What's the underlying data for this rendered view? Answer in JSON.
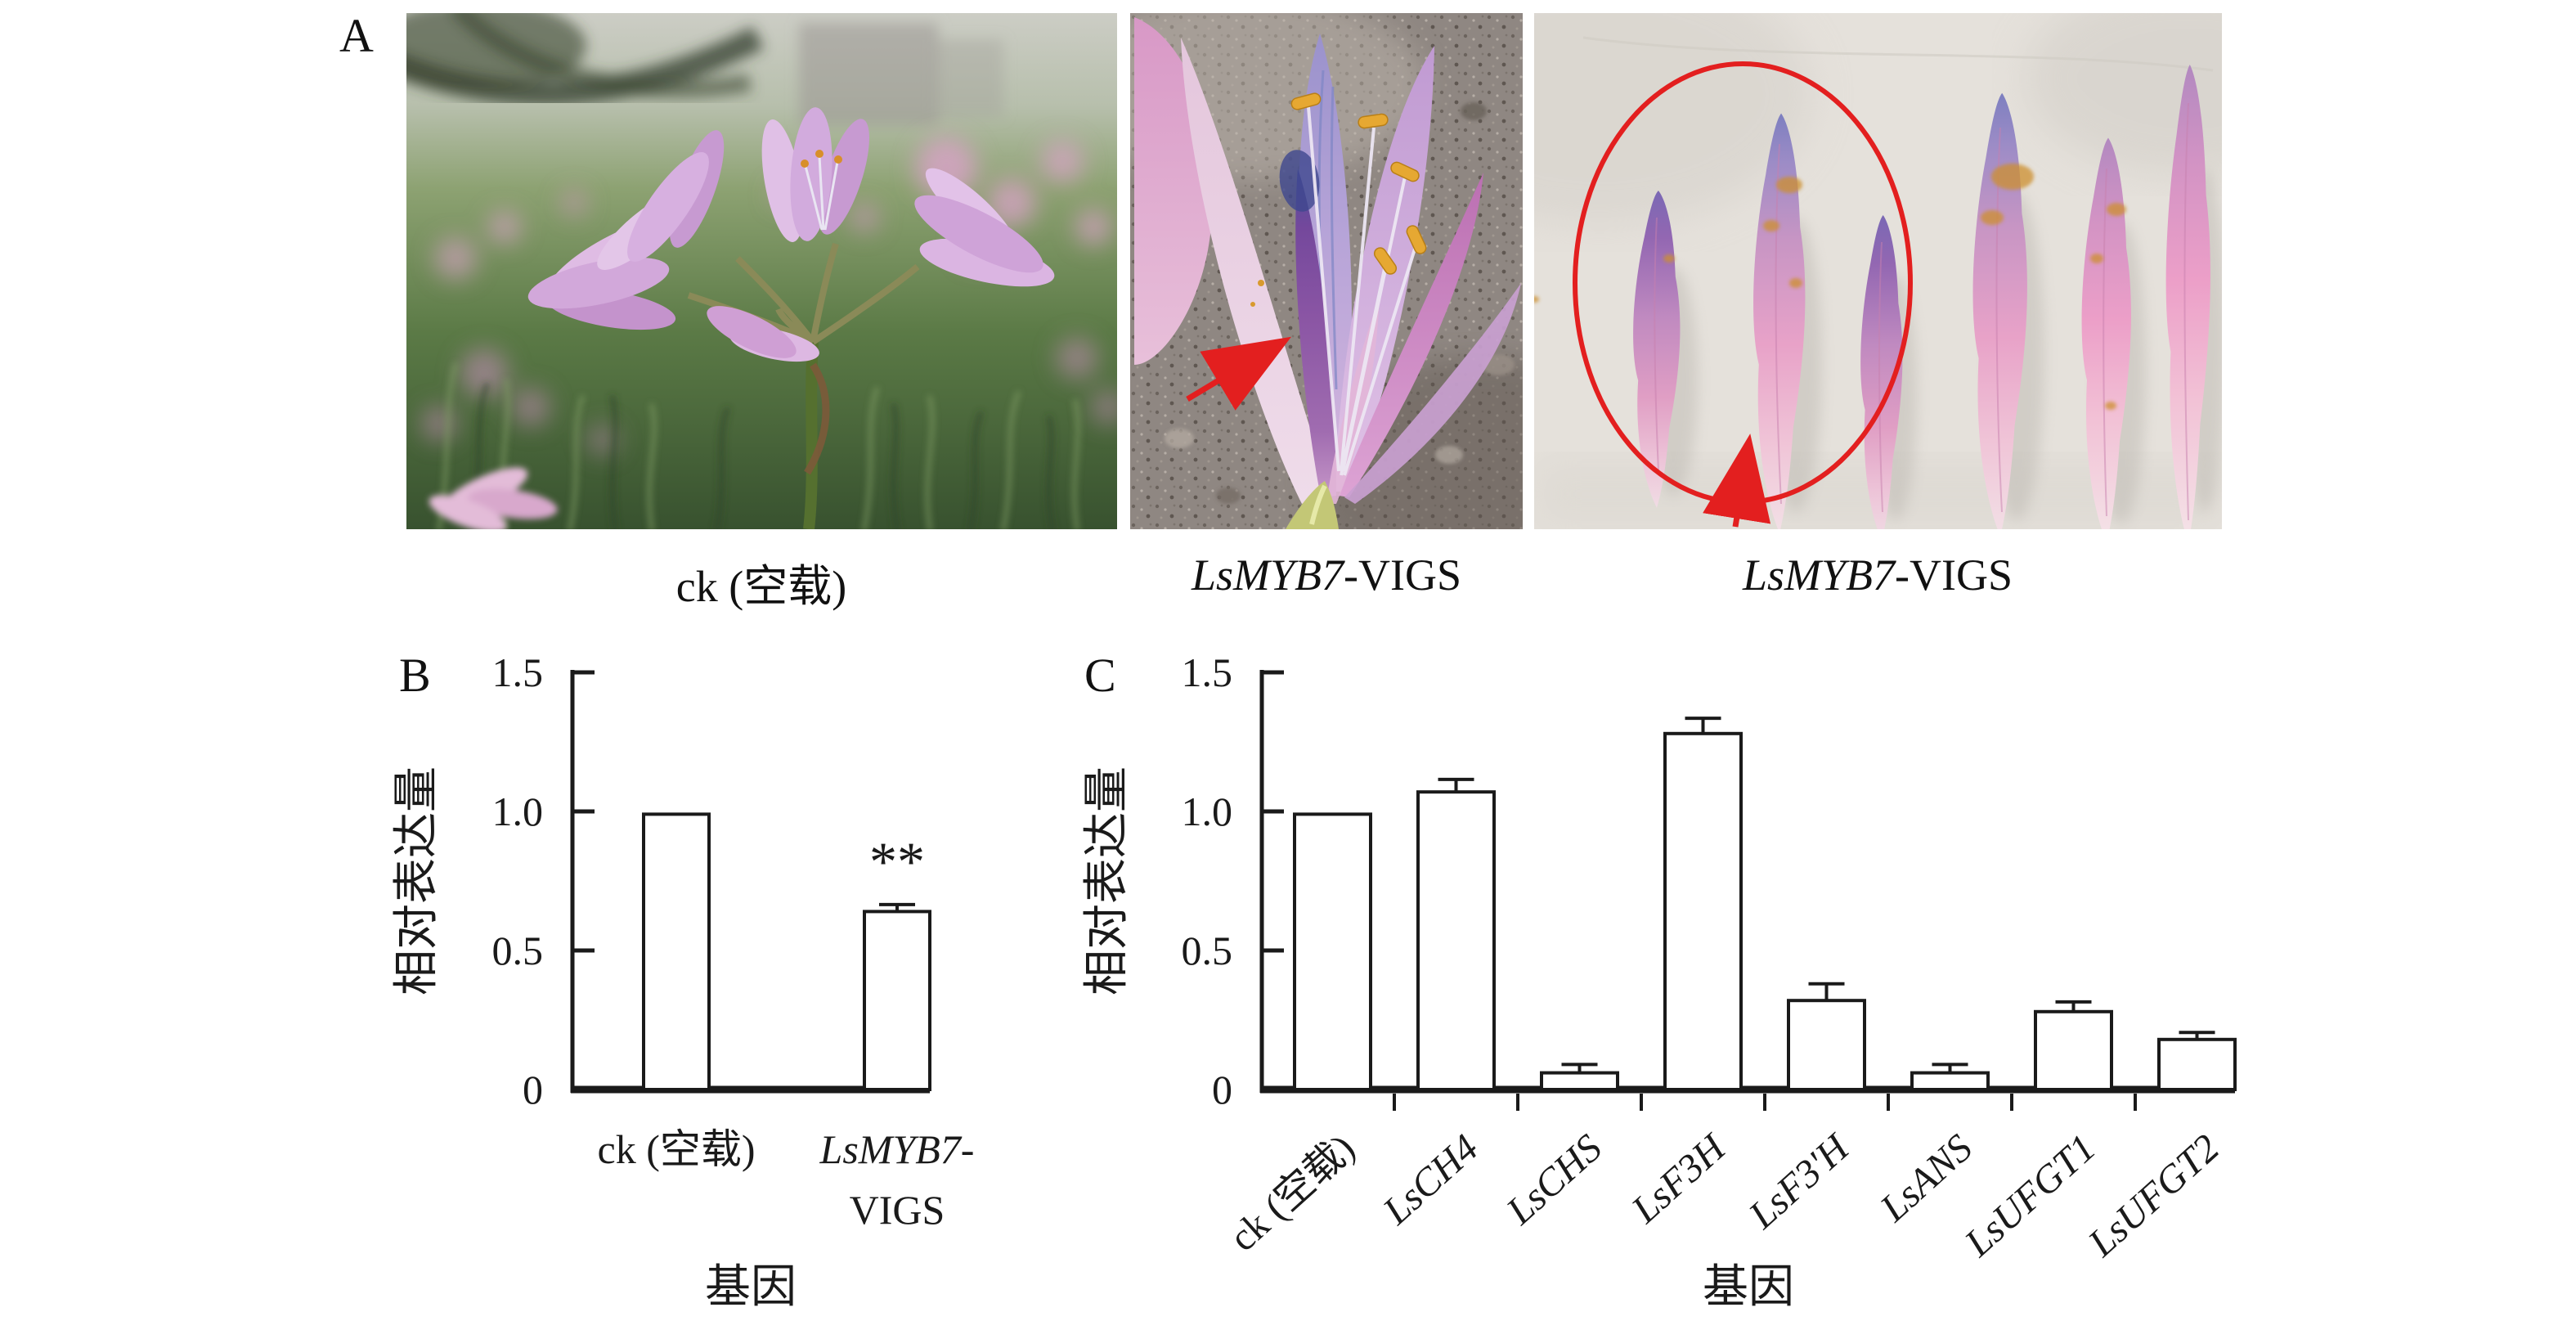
{
  "figure": {
    "panel_letters": {
      "a": "A",
      "b": "B",
      "c": "C"
    },
    "photo_captions": [
      {
        "segments": [
          {
            "text": "ck (空载)",
            "italic": false
          }
        ]
      },
      {
        "segments": [
          {
            "text": "LsMYB7",
            "italic": true
          },
          {
            "text": "-VIGS",
            "italic": false
          }
        ]
      },
      {
        "segments": [
          {
            "text": "LsMYB7",
            "italic": true
          },
          {
            "text": "-VIGS",
            "italic": false
          }
        ]
      }
    ],
    "colors": {
      "annotation_red": "#e31f1f",
      "bar_fill": "#ffffff",
      "ink": "#1a1a1a"
    }
  },
  "chart_data": [
    {
      "id": "B",
      "type": "bar",
      "title": "",
      "ylabel": "相对表达量",
      "xlabel": "基因",
      "ylim": [
        0,
        1.5
      ],
      "ytick_labels": [
        "0",
        "0.5",
        "1.0",
        "1.5"
      ],
      "ytick_values": [
        0,
        0.5,
        1.0,
        1.5
      ],
      "categories": [
        {
          "lines": [
            [
              {
                "text": "ck (空载)",
                "italic": false
              }
            ]
          ]
        },
        {
          "lines": [
            [
              {
                "text": "LsMYB7",
                "italic": true
              },
              {
                "text": "-",
                "italic": false
              }
            ],
            [
              {
                "text": "VIGS",
                "italic": false
              }
            ]
          ]
        }
      ],
      "values": [
        0.99,
        0.64
      ],
      "errors": [
        0,
        0.025
      ],
      "sig": [
        "",
        "**"
      ],
      "grid": false,
      "legend": "none",
      "bar_style": "open-white-black-outline"
    },
    {
      "id": "C",
      "type": "bar",
      "title": "",
      "ylabel": "相对表达量",
      "xlabel": "基因",
      "ylim": [
        0,
        1.5
      ],
      "ytick_labels": [
        "0",
        "0.5",
        "1.0",
        "1.5"
      ],
      "ytick_values": [
        0,
        0.5,
        1.0,
        1.5
      ],
      "categories": [
        {
          "lines": [
            [
              {
                "text": "ck (空载)",
                "italic": false
              }
            ]
          ]
        },
        {
          "lines": [
            [
              {
                "text": "LsCH4",
                "italic": true
              }
            ]
          ]
        },
        {
          "lines": [
            [
              {
                "text": "LsCHS",
                "italic": true
              }
            ]
          ]
        },
        {
          "lines": [
            [
              {
                "text": "LsF3H",
                "italic": true
              }
            ]
          ]
        },
        {
          "lines": [
            [
              {
                "text": "LsF3'H",
                "italic": true
              }
            ]
          ]
        },
        {
          "lines": [
            [
              {
                "text": "LsANS",
                "italic": true
              }
            ]
          ]
        },
        {
          "lines": [
            [
              {
                "text": "LsUFGT1",
                "italic": true
              }
            ]
          ]
        },
        {
          "lines": [
            [
              {
                "text": "LsUFGT2",
                "italic": true
              }
            ]
          ]
        }
      ],
      "values": [
        0.99,
        1.07,
        0.06,
        1.28,
        0.32,
        0.06,
        0.28,
        0.18
      ],
      "errors": [
        0,
        0.045,
        0.03,
        0.055,
        0.06,
        0.03,
        0.035,
        0.025
      ],
      "sig": [
        "",
        "",
        "",
        "",
        "",
        "",
        "",
        ""
      ],
      "grid": false,
      "legend": "none",
      "bar_style": "open-white-black-outline",
      "xticklabel_rotation": -42
    }
  ]
}
